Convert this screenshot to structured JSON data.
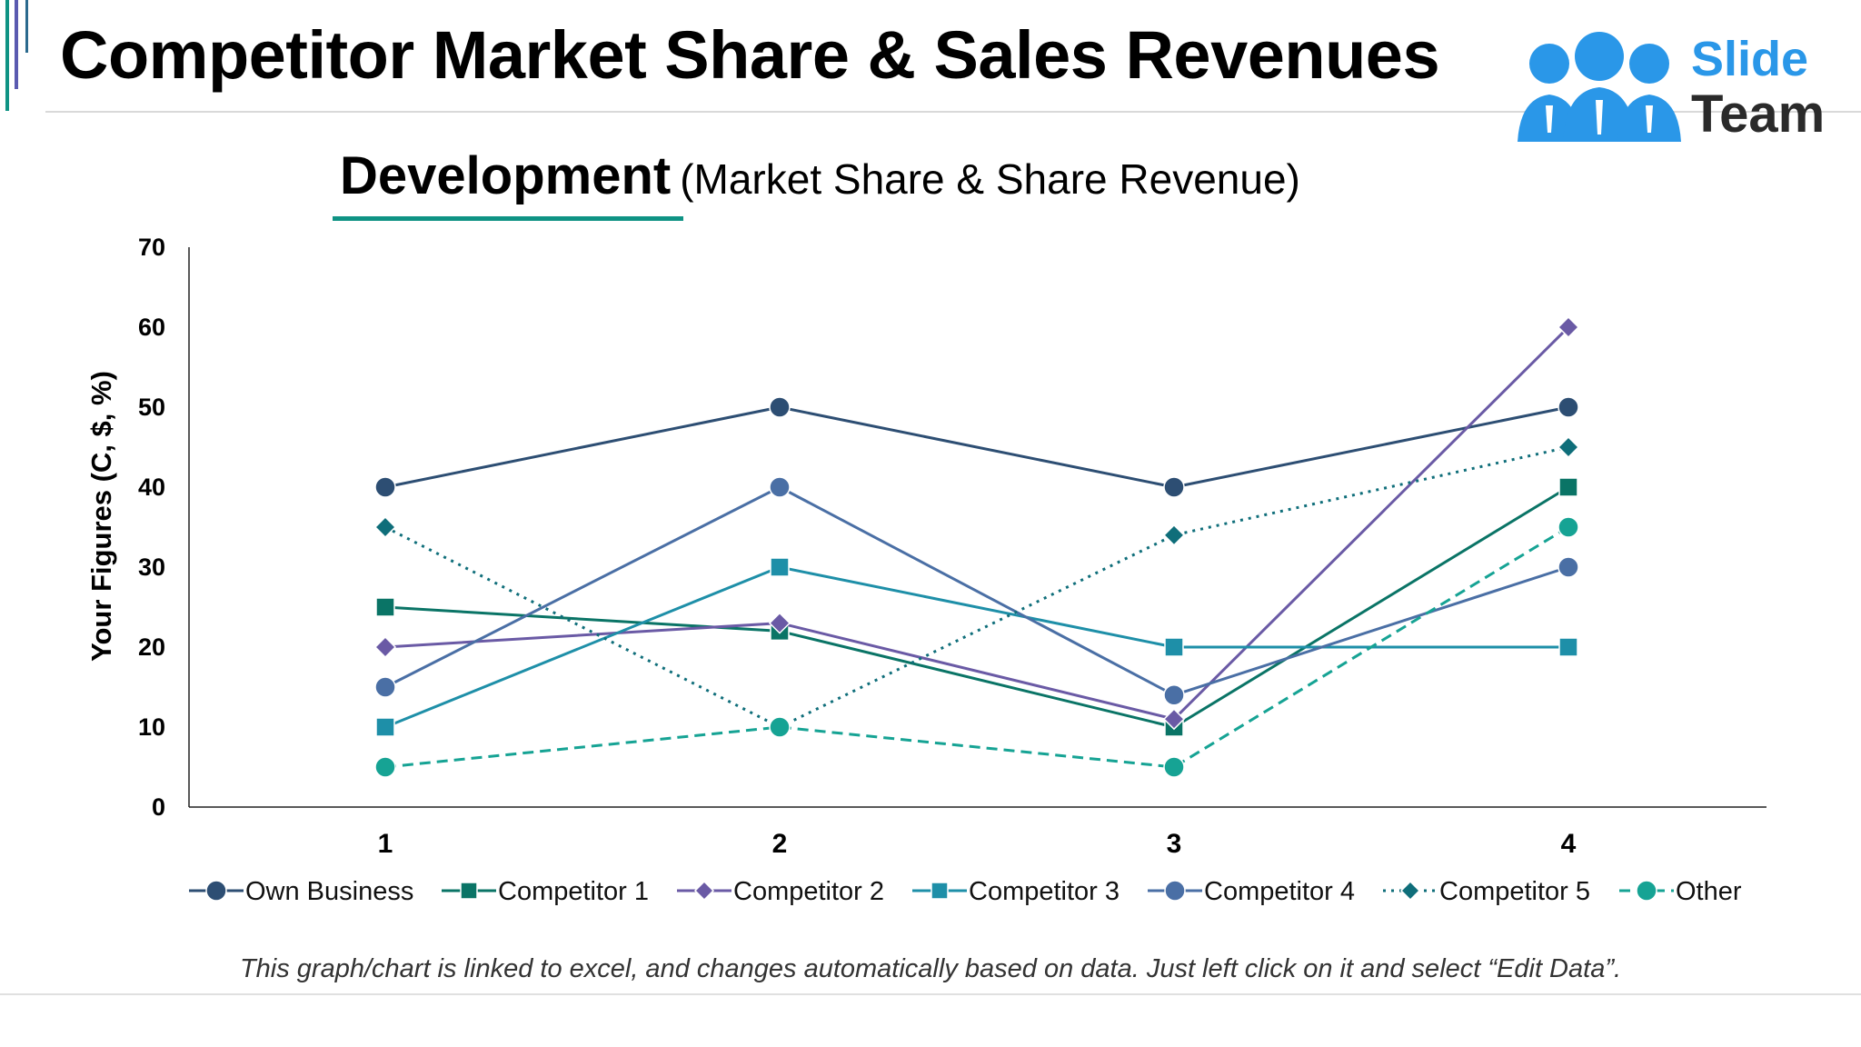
{
  "header": {
    "title": "Competitor Market Share & Sales Revenues",
    "logo_text_1": "Slide",
    "logo_text_2": "Team"
  },
  "subtitle": {
    "strong": "Development",
    "rest": "(Market Share & Share Revenue)"
  },
  "footnote": "This graph/chart is linked to excel, and changes automatically based on data. Just left click on it and select “Edit Data”.",
  "colors": {
    "own": "#2d4e73",
    "c1": "#0a7466",
    "c2": "#6a5aa5",
    "c3": "#1e8fa8",
    "c4": "#4a6fa5",
    "c5": "#0f6e7a",
    "other": "#16a394",
    "logo_blue": "#2a97e8",
    "logo_dark": "#2a2a2a"
  },
  "chart_data": {
    "type": "line",
    "categories": [
      "1",
      "2",
      "3",
      "4"
    ],
    "ylabel": "Your Figures (C, $, %)",
    "ylim": [
      0,
      70
    ],
    "yticks": [
      "0",
      "10",
      "20",
      "30",
      "40",
      "50",
      "60",
      "70"
    ],
    "grid": false,
    "legend": "bottom",
    "series": [
      {
        "name": "Own Business",
        "values": [
          40,
          50,
          40,
          50
        ],
        "color": "#2d4e73",
        "marker": "circle",
        "dash": "solid"
      },
      {
        "name": "Competitor 1",
        "values": [
          25,
          22,
          10,
          40
        ],
        "color": "#0a7466",
        "marker": "square",
        "dash": "solid"
      },
      {
        "name": "Competitor 2",
        "values": [
          20,
          23,
          11,
          60
        ],
        "color": "#6a5aa5",
        "marker": "diamond",
        "dash": "solid"
      },
      {
        "name": "Competitor 3",
        "values": [
          10,
          30,
          20,
          20
        ],
        "color": "#1e8fa8",
        "marker": "square",
        "dash": "solid"
      },
      {
        "name": "Competitor 4",
        "values": [
          15,
          40,
          14,
          30
        ],
        "color": "#4a6fa5",
        "marker": "circle",
        "dash": "solid"
      },
      {
        "name": "Competitor 5",
        "values": [
          35,
          10,
          34,
          45
        ],
        "color": "#0f6e7a",
        "marker": "diamond",
        "dash": "dot"
      },
      {
        "name": "Other",
        "values": [
          5,
          10,
          5,
          35
        ],
        "color": "#16a394",
        "marker": "circle",
        "dash": "dash"
      }
    ]
  }
}
